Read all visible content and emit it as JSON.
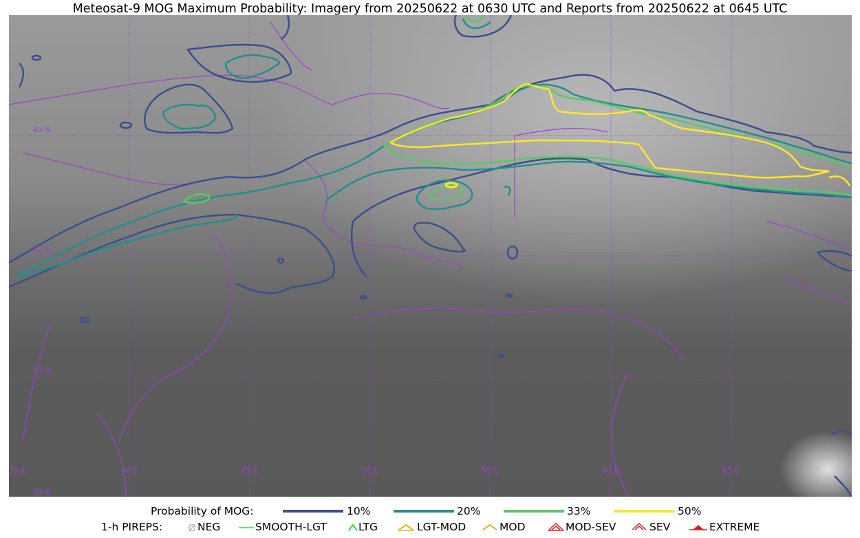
{
  "title": "Meteosat-9 MOG Maximum Probability: Imagery from 20250622 at 0630 UTC and Reports from 20250622 at 0645 UTC",
  "map": {
    "lat_labels": [
      "45 N",
      "40 N",
      "35 N",
      "30 N"
    ],
    "lon_labels": [
      "35 E",
      "40 E",
      "45 E",
      "50 E",
      "55 E",
      "60 E",
      "65 E"
    ],
    "colors": {
      "p10": "#3b4f8f",
      "p20": "#21908c",
      "p33": "#5ac864",
      "p50": "#fde725",
      "border": "#a040d0"
    }
  },
  "legend": {
    "prob_title": "Probability of MOG:",
    "prob_items": [
      "10%",
      "20%",
      "33%",
      "50%"
    ],
    "pirep_title": "1-h PIREPS:",
    "pirep_items": [
      "NEG",
      "SMOOTH-LGT",
      "LTG",
      "LGT-MOD",
      "MOD",
      "MOD-SEV",
      "SEV",
      "EXTREME"
    ]
  }
}
